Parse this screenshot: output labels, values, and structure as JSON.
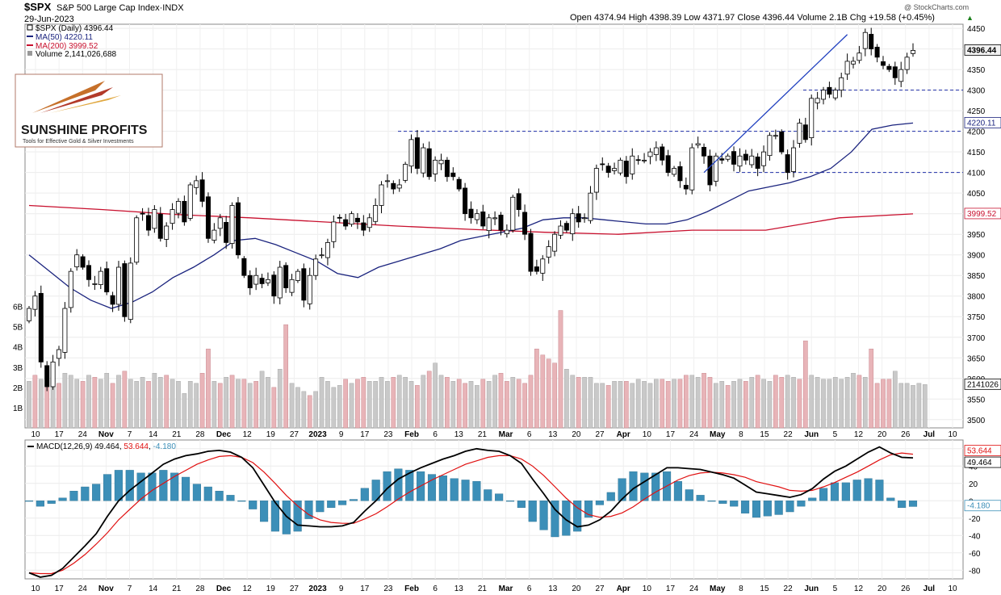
{
  "header": {
    "symbol": "$SPX",
    "name": "S&P 500 Large Cap Index",
    "exchange": "INDX",
    "date": "29-Jun-2023",
    "stats": "Open 4374.94  High 4398.39  Low 4371.97  Close 4396.44  Volume 2.1B  Chg +19.58 (+0.45%)",
    "chg_arrow": "▲",
    "watermark": "@ StockCharts.com"
  },
  "legend": {
    "price": "$SPX (Daily) 4396.44",
    "ma50": "MA(50) 4220.11",
    "ma200": "MA(200) 3999.52",
    "volume": "Volume 2,141,026,688"
  },
  "logo": {
    "brand": "SUNSHINE PROFITS",
    "tagline": "Tools for Effective Gold & Silver Investments"
  },
  "macd_legend": {
    "label": "MACD(12,26,9)",
    "macd_value": "49.464",
    "signal_value": "53.644",
    "hist_value": "-4.180"
  },
  "colors": {
    "up_candle": "#ffffff",
    "down_candle": "#000000",
    "ma50": "#1a237e",
    "ma200": "#c8102e",
    "trend_line": "#1f3fbf",
    "support": "#1f2fa8",
    "volume_up": "#c9c9c9",
    "volume_down": "#e8b4b8",
    "macd": "#000000",
    "signal": "#e01010",
    "histogram": "#3c8fb8",
    "price_tag_bg": "#f2f2f2"
  },
  "chart_data": [
    {
      "type": "candlestick",
      "title": "$SPX S&P 500 Large Cap Index",
      "ylim": [
        3480,
        4460
      ],
      "y_ticks": [
        3500,
        3550,
        3600,
        3650,
        3700,
        3750,
        3800,
        3850,
        3900,
        3950,
        4000,
        4050,
        4100,
        4150,
        4200,
        4250,
        4300,
        4350,
        4400,
        4450
      ],
      "x_labels": [
        "10",
        "17",
        "24",
        "Nov",
        "7",
        "14",
        "21",
        "28",
        "Dec",
        "12",
        "19",
        "27",
        "2023",
        "9",
        "17",
        "23",
        "Feb",
        "6",
        "13",
        "21",
        "Mar",
        "6",
        "13",
        "20",
        "27",
        "Apr",
        "10",
        "17",
        "24",
        "May",
        "8",
        "15",
        "22",
        "Jun",
        "5",
        "12",
        "20",
        "26",
        "Jul",
        "10"
      ],
      "last_price_tag": "4396.44",
      "ma50_tag": "4220.11",
      "ma200_tag": "3999.52",
      "support_levels": [
        4300,
        4200,
        4100
      ],
      "close": [
        3770,
        3800,
        3640,
        3580,
        3640,
        3670,
        3770,
        3860,
        3900,
        3870,
        3840,
        3830,
        3860,
        3810,
        3780,
        3870,
        3750,
        3880,
        3990,
        4000,
        3960,
        4010,
        3940,
        3970,
        4010,
        4030,
        3980,
        4070,
        4080,
        4030,
        3940,
        3960,
        3990,
        3930,
        4020,
        3900,
        3850,
        3820,
        3850,
        3830,
        3840,
        3800,
        3870,
        3820,
        3840,
        3860,
        3790,
        3850,
        3890,
        3900,
        3930,
        3980,
        3990,
        3970,
        4000,
        3980,
        3960,
        3990,
        4020,
        4070,
        4080,
        4060,
        4070,
        4120,
        4180,
        4110,
        4160,
        4090,
        4130,
        4130,
        4090,
        4090,
        4060,
        4000,
        3990,
        4000,
        3970,
        3990,
        3990,
        3960,
        3960,
        4040,
        4010,
        3950,
        3860,
        3860,
        3890,
        3920,
        3950,
        3970,
        3960,
        4000,
        3980,
        3990,
        4050,
        4110,
        4120,
        4100,
        4110,
        4130,
        4090,
        4140,
        4130,
        4130,
        4150,
        4160,
        4130,
        4100,
        4110,
        4080,
        4060,
        4160,
        4170,
        4140,
        4070,
        4140,
        4130,
        4140,
        4120,
        4140,
        4130,
        4140,
        4110,
        4150,
        4190,
        4190,
        4150,
        4100,
        4160,
        4220,
        4180,
        4280,
        4280,
        4300,
        4290,
        4300,
        4330,
        4370,
        4370,
        4390,
        4440,
        4400,
        4380,
        4360,
        4350,
        4330,
        4350,
        4380,
        4396.44
      ],
      "ma50": [
        3900,
        3860,
        3820,
        3790,
        3770,
        3785,
        3810,
        3845,
        3870,
        3900,
        3935,
        3940,
        3925,
        3905,
        3885,
        3855,
        3845,
        3870,
        3885,
        3900,
        3915,
        3935,
        3945,
        3955,
        3965,
        3985,
        3990,
        3990,
        3985,
        3980,
        3975,
        3975,
        3985,
        4005,
        4030,
        4055,
        4065,
        4075,
        4090,
        4110,
        4150,
        4205,
        4215,
        4220.11
      ],
      "ma200": [
        4020,
        4010,
        3998,
        3990,
        3980,
        3970,
        3962,
        3955,
        3950,
        3960,
        3960,
        3990,
        3999.52
      ]
    },
    {
      "type": "bar",
      "title": "Volume",
      "y_ticks": [
        "1B",
        "2B",
        "3B",
        "4B",
        "5B",
        "6B"
      ],
      "ylim": [
        0,
        6.5
      ],
      "volume_tag": "2141026",
      "values": [
        2.3,
        2.6,
        2.4,
        2.0,
        2.5,
        2.2,
        2.7,
        2.6,
        2.4,
        2.3,
        2.6,
        2.5,
        2.4,
        2.7,
        2.2,
        2.6,
        2.8,
        2.4,
        2.3,
        2.5,
        2.3,
        2.7,
        2.5,
        2.6,
        2.4,
        2.3,
        1.7,
        2.3,
        2.2,
        2.7,
        3.9,
        2.3,
        2.2,
        2.5,
        2.6,
        2.4,
        2.4,
        2.2,
        2.3,
        2.8,
        2.5,
        2.0,
        2.9,
        5.1,
        2.2,
        2.0,
        1.8,
        1.6,
        1.8,
        2.5,
        2.3,
        2.0,
        2.1,
        2.4,
        2.2,
        2.4,
        2.5,
        2.3,
        2.3,
        2.5,
        2.3,
        2.5,
        2.6,
        2.5,
        2.3,
        2.1,
        2.6,
        2.8,
        3.2,
        2.6,
        2.5,
        2.3,
        2.4,
        2.2,
        2.3,
        2.1,
        2.4,
        2.3,
        2.6,
        2.7,
        2.3,
        2.5,
        2.4,
        2.2,
        2.6,
        3.9,
        3.6,
        3.4,
        3.2,
        5.8,
        2.9,
        2.6,
        2.5,
        2.5,
        2.5,
        2.2,
        2.2,
        2.1,
        2.3,
        2.3,
        2.3,
        2.2,
        2.4,
        2.3,
        2.2,
        2.4,
        2.4,
        2.3,
        2.4,
        2.4,
        2.6,
        2.6,
        2.5,
        2.7,
        2.5,
        2.2,
        2.3,
        2.1,
        2.3,
        2.4,
        2.3,
        2.5,
        2.6,
        2.4,
        2.3,
        2.6,
        2.5,
        2.6,
        2.5,
        2.4,
        4.3,
        2.6,
        2.5,
        2.4,
        2.4,
        2.5,
        2.4,
        2.5,
        2.7,
        2.6,
        2.5,
        3.9,
        2.2,
        2.4,
        2.4,
        2.8,
        2.2,
        2.2,
        2.1,
        2.2,
        2.14
      ],
      "down_days": [
        1,
        3,
        5,
        9,
        11,
        14,
        16,
        20,
        23,
        29,
        30,
        32,
        34,
        36,
        38,
        41,
        43,
        47,
        53,
        55,
        56,
        61,
        65,
        67,
        70,
        72,
        73,
        76,
        79,
        80,
        82,
        83,
        84,
        85,
        86,
        87,
        88,
        89,
        92,
        97,
        100,
        106,
        107,
        109,
        110,
        113,
        114,
        117,
        120,
        122,
        125,
        126,
        129,
        130,
        139,
        141,
        142,
        143,
        144
      ]
    },
    {
      "type": "line",
      "title": "MACD(12,26,9)",
      "ylim": [
        -90,
        70
      ],
      "y_ticks": [
        60,
        40,
        20,
        0,
        -20,
        -40,
        -60,
        -80
      ],
      "macd_tag": "53.644",
      "macd_value_tag": "49.464",
      "hist_tag": "-4.180",
      "series": [
        {
          "name": "MACD",
          "values": [
            -83,
            -88,
            -86,
            -78,
            -65,
            -52,
            -38,
            -18,
            0,
            12,
            22,
            32,
            42,
            48,
            52,
            54,
            57,
            58,
            56,
            50,
            38,
            18,
            -2,
            -18,
            -28,
            -29,
            -30,
            -30,
            -29,
            -25,
            -12,
            0,
            14,
            25,
            32,
            38,
            43,
            48,
            52,
            57,
            60,
            58,
            57,
            52,
            43,
            25,
            8,
            -10,
            -22,
            -30,
            -28,
            -22,
            -12,
            2,
            14,
            22,
            30,
            38,
            38,
            37,
            36,
            33,
            30,
            26,
            18,
            10,
            8,
            6,
            4,
            7,
            14,
            25,
            34,
            40,
            48,
            56,
            62,
            55,
            50,
            49.464
          ]
        },
        {
          "name": "Signal",
          "values": [
            -83,
            -84,
            -84,
            -80,
            -72,
            -62,
            -50,
            -37,
            -22,
            -10,
            2,
            12,
            20,
            28,
            35,
            42,
            47,
            51,
            52,
            50,
            44,
            33,
            20,
            6,
            -6,
            -16,
            -22,
            -25,
            -26,
            -26,
            -21,
            -15,
            -7,
            2,
            10,
            17,
            24,
            30,
            36,
            42,
            46,
            50,
            52,
            52,
            48,
            40,
            29,
            16,
            3,
            -8,
            -16,
            -19,
            -18,
            -14,
            -7,
            2,
            10,
            17,
            24,
            29,
            32,
            33,
            32,
            30,
            27,
            22,
            19,
            16,
            12,
            11,
            12,
            16,
            21,
            27,
            33,
            40,
            47,
            53,
            55,
            53.644
          ]
        }
      ]
    }
  ]
}
